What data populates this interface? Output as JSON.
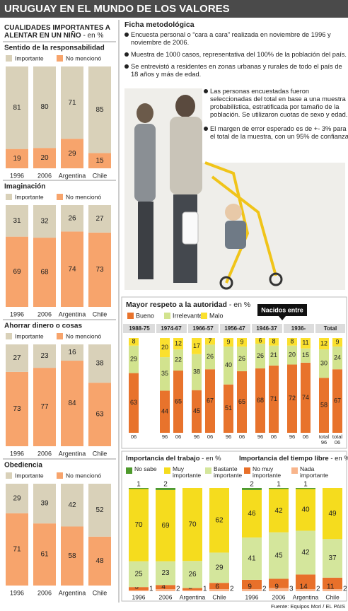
{
  "title": "URUGUAY EN EL MUNDO DE LOS VALORES",
  "left_header": {
    "title": "CUALIDADES IMPORTANTES A ALENTAR EN UN NIÑO",
    "unit": "- en %"
  },
  "ficha": {
    "title": "Ficha metodológica",
    "items": [
      "Encuesta personal o “cara a cara” realizada en noviembre de 1996 y noviembre de 2006.",
      "Muestra de 1000 casos, representativa del 100% de la población del país.",
      "Se entrevistó a residentes en zonas urbanas y rurales de todo el país de 18 años y más de edad.",
      "Las personas encuestadas fueron seleccionadas del total en base a una muestra probabilística, estratificada por tamaño de la población. Se utilizaron cuotas de sexo y edad.",
      "El margen de error esperado es de +- 3% para el total de la muestra, con un 95% de confianza."
    ]
  },
  "source": "Fuente: Equipos Mori / EL PAIS",
  "chart_data": [
    {
      "type": "bar",
      "stacked": true,
      "title": "Sentido de la responsabilidad",
      "categories": [
        "1996",
        "2006",
        "Argentina",
        "Chile"
      ],
      "series": [
        {
          "name": "Importante",
          "color": "#d9d1b9",
          "values": [
            81,
            80,
            71,
            85
          ]
        },
        {
          "name": "No mencionó",
          "color": "#f7a46c",
          "values": [
            19,
            20,
            29,
            15
          ]
        }
      ]
    },
    {
      "type": "bar",
      "stacked": true,
      "title": "Imaginación",
      "categories": [
        "1996",
        "2006",
        "Argentina",
        "Chile"
      ],
      "series": [
        {
          "name": "Importante",
          "color": "#d9d1b9",
          "values": [
            31,
            32,
            26,
            27
          ]
        },
        {
          "name": "No mencionó",
          "color": "#f7a46c",
          "values": [
            69,
            68,
            74,
            73
          ]
        }
      ]
    },
    {
      "type": "bar",
      "stacked": true,
      "title": "Ahorrar dinero o cosas",
      "categories": [
        "1996",
        "2006",
        "Argentina",
        "Chile"
      ],
      "series": [
        {
          "name": "Importante",
          "color": "#d9d1b9",
          "values": [
            27,
            23,
            16,
            38
          ]
        },
        {
          "name": "No mencionó",
          "color": "#f7a46c",
          "values": [
            73,
            77,
            84,
            63
          ]
        }
      ]
    },
    {
      "type": "bar",
      "stacked": true,
      "title": "Obediencia",
      "categories": [
        "1996",
        "2006",
        "Argentina",
        "Chile"
      ],
      "series": [
        {
          "name": "Importante",
          "color": "#d9d1b9",
          "values": [
            29,
            39,
            42,
            52
          ]
        },
        {
          "name": "No mencionó",
          "color": "#f7a46c",
          "values": [
            71,
            61,
            58,
            48
          ]
        }
      ]
    },
    {
      "type": "grouped_stacked_bar",
      "title": "Mayor respeto a la autoridad",
      "subtitle": "- en %",
      "annotation": "Nacidos entre",
      "series": [
        {
          "name": "Bueno",
          "color": "#e8732c"
        },
        {
          "name": "Irrelevante",
          "color": "#d2e38e"
        },
        {
          "name": "Malo",
          "color": "#fbe02e"
        }
      ],
      "groups": [
        {
          "name": "1988-75",
          "bars": [
            {
              "label": "06",
              "values": [
                63,
                29,
                8
              ]
            }
          ]
        },
        {
          "name": "1974-67",
          "bars": [
            {
              "label": "96",
              "values": [
                44,
                35,
                20
              ]
            },
            {
              "label": "06",
              "values": [
                65,
                22,
                12
              ]
            }
          ]
        },
        {
          "name": "1966-57",
          "bars": [
            {
              "label": "96",
              "values": [
                45,
                38,
                17
              ]
            },
            {
              "label": "06",
              "values": [
                67,
                26,
                7
              ]
            }
          ]
        },
        {
          "name": "1956-47",
          "bars": [
            {
              "label": "96",
              "values": [
                51,
                40,
                9
              ]
            },
            {
              "label": "06",
              "values": [
                65,
                26,
                9
              ]
            }
          ]
        },
        {
          "name": "1946-37",
          "bars": [
            {
              "label": "96",
              "values": [
                68,
                26,
                6
              ]
            },
            {
              "label": "06",
              "values": [
                71,
                21,
                8
              ]
            }
          ]
        },
        {
          "name": "1936-",
          "bars": [
            {
              "label": "96",
              "values": [
                72,
                20,
                8
              ]
            },
            {
              "label": "06",
              "values": [
                74,
                15,
                11
              ]
            }
          ]
        },
        {
          "name": "Total",
          "bars": [
            {
              "label": "total 96",
              "values": [
                58,
                30,
                12
              ]
            },
            {
              "label": "total 06",
              "values": [
                67,
                24,
                9
              ]
            }
          ]
        }
      ]
    },
    {
      "type": "bar",
      "stacked": true,
      "title": "Importancia del trabajo",
      "subtitle": "- en %",
      "categories": [
        "1996",
        "2006",
        "Argentina",
        "Chile"
      ],
      "series": [
        {
          "name": "No sabe",
          "color": "#4e9a2c",
          "values": [
            1,
            2,
            null,
            null
          ]
        },
        {
          "name": "Muy importante",
          "color": "#f5dc1e",
          "values": [
            70,
            69,
            70,
            62
          ]
        },
        {
          "name": "Bastante importante",
          "color": "#d4e69c",
          "values": [
            25,
            23,
            26,
            29
          ]
        },
        {
          "name": "No muy importante",
          "color": "#e8702a",
          "values": [
            3,
            4,
            2,
            6
          ]
        },
        {
          "name": "Nada importante",
          "color": "#f8b58c",
          "values": [
            1,
            2,
            1,
            2
          ]
        }
      ]
    },
    {
      "type": "bar",
      "stacked": true,
      "title": "Importancia del tiempo libre",
      "subtitle": "- en %",
      "categories": [
        "1996",
        "2006",
        "Argentina",
        "Chile"
      ],
      "series": [
        {
          "values": [
            2,
            1,
            1,
            null
          ]
        },
        {
          "values": [
            46,
            42,
            40,
            49
          ]
        },
        {
          "values": [
            41,
            45,
            42,
            37
          ]
        },
        {
          "values": [
            9,
            9,
            14,
            11
          ]
        },
        {
          "values": [
            2,
            3,
            2,
            2
          ]
        }
      ]
    }
  ]
}
